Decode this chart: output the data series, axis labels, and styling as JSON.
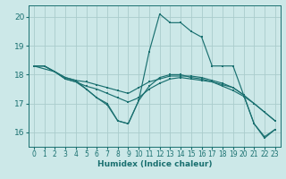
{
  "xlabel": "Humidex (Indice chaleur)",
  "bg_color": "#cce8e8",
  "grid_color": "#aacccc",
  "line_color": "#1a7070",
  "xlim": [
    -0.5,
    23.5
  ],
  "ylim": [
    15.5,
    20.4
  ],
  "yticks": [
    16,
    17,
    18,
    19,
    20
  ],
  "xticks": [
    0,
    1,
    2,
    3,
    4,
    5,
    6,
    7,
    8,
    9,
    10,
    11,
    12,
    13,
    14,
    15,
    16,
    17,
    18,
    19,
    20,
    21,
    22,
    23
  ],
  "lines": [
    {
      "x": [
        0,
        1,
        2,
        3,
        4,
        5,
        6,
        7,
        8,
        9,
        10,
        11,
        12,
        13,
        14,
        15,
        16,
        17,
        18,
        19,
        20,
        21,
        22,
        23
      ],
      "y": [
        18.3,
        18.3,
        18.1,
        17.9,
        17.8,
        17.5,
        17.2,
        17.0,
        16.4,
        16.3,
        17.1,
        18.8,
        20.1,
        19.8,
        19.8,
        19.5,
        19.3,
        18.3,
        18.3,
        18.3,
        17.3,
        16.3,
        15.8,
        16.1
      ]
    },
    {
      "x": [
        0,
        1,
        2,
        3,
        4,
        5,
        6,
        7,
        8,
        9,
        10,
        11,
        12,
        13,
        14,
        15,
        16,
        17,
        18,
        19,
        20,
        21,
        22,
        23
      ],
      "y": [
        18.3,
        18.3,
        18.1,
        17.9,
        17.8,
        17.75,
        17.65,
        17.55,
        17.45,
        17.35,
        17.55,
        17.75,
        17.85,
        17.95,
        17.95,
        17.95,
        17.9,
        17.8,
        17.7,
        17.55,
        17.3,
        17.0,
        16.7,
        16.4
      ]
    },
    {
      "x": [
        0,
        1,
        2,
        3,
        4,
        5,
        6,
        7,
        8,
        9,
        10,
        11,
        12,
        13,
        14,
        15,
        16,
        17,
        18,
        19,
        20,
        21,
        22,
        23
      ],
      "y": [
        18.3,
        18.3,
        18.1,
        17.85,
        17.75,
        17.6,
        17.5,
        17.35,
        17.2,
        17.05,
        17.2,
        17.5,
        17.7,
        17.85,
        17.9,
        17.85,
        17.8,
        17.75,
        17.6,
        17.45,
        17.25,
        17.0,
        16.7,
        16.4
      ]
    },
    {
      "x": [
        0,
        2,
        3,
        4,
        5,
        6,
        7,
        8,
        9,
        10,
        11,
        12,
        13,
        14,
        15,
        16,
        17,
        18,
        19,
        20,
        21,
        22,
        23
      ],
      "y": [
        18.3,
        18.1,
        17.85,
        17.75,
        17.5,
        17.2,
        16.95,
        16.4,
        16.3,
        17.1,
        17.6,
        17.9,
        18.0,
        18.0,
        17.9,
        17.85,
        17.75,
        17.65,
        17.55,
        17.3,
        16.3,
        15.85,
        16.1
      ]
    }
  ]
}
